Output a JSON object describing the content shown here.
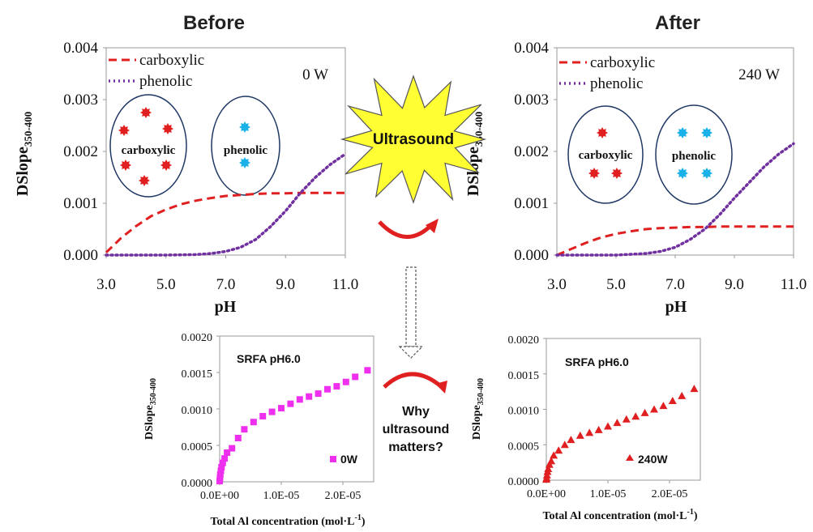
{
  "center": {
    "burst_label": "Ultrasound",
    "question_lines": [
      "Why",
      "ultrasound",
      "matters?"
    ],
    "burst_color": "#ffff33",
    "arrow_color": "#e02020"
  },
  "chart_data": [
    {
      "id": "before",
      "type": "line",
      "title": "Before",
      "power_label": "0 W",
      "xlabel": "pH",
      "ylabel": "DSlope",
      "ylabel_sub": "350-400",
      "xlim": [
        3.0,
        11.0
      ],
      "ylim": [
        0.0,
        0.004
      ],
      "xticks": [
        "3.0",
        "5.0",
        "7.0",
        "9.0",
        "11.0"
      ],
      "yticks": [
        "0.000",
        "0.001",
        "0.002",
        "0.003",
        "0.004"
      ],
      "grid": false,
      "legend_position": "top-left",
      "series": [
        {
          "name": "carboxylic",
          "style": "dashed",
          "color": "#e02020",
          "x": [
            3.0,
            3.5,
            4.0,
            4.5,
            5.0,
            5.5,
            6.0,
            6.5,
            7.0,
            7.5,
            8.0,
            8.5,
            9.0,
            9.5,
            10.0,
            10.5,
            11.0
          ],
          "y": [
            5e-05,
            0.00033,
            0.00056,
            0.00075,
            0.00088,
            0.00098,
            0.00105,
            0.0011,
            0.00114,
            0.00116,
            0.00118,
            0.00119,
            0.00119,
            0.0012,
            0.0012,
            0.0012,
            0.0012
          ]
        },
        {
          "name": "phenolic",
          "style": "dotted",
          "color": "#7030a0",
          "x": [
            3.0,
            4.0,
            5.0,
            6.0,
            6.5,
            7.0,
            7.5,
            8.0,
            8.5,
            9.0,
            9.5,
            10.0,
            10.5,
            11.0
          ],
          "y": [
            0.0,
            0.0,
            0.0,
            1e-05,
            3e-05,
            7e-05,
            0.00015,
            0.0003,
            0.00055,
            0.00085,
            0.0012,
            0.0015,
            0.00175,
            0.00195
          ]
        }
      ],
      "circles": [
        {
          "label": "carboxylic",
          "dot_color": "#e02020",
          "dots": 6
        },
        {
          "label": "phenolic",
          "dot_color": "#1ab0e8",
          "dots": 2
        }
      ]
    },
    {
      "id": "after",
      "type": "line",
      "title": "After",
      "power_label": "240 W",
      "xlabel": "pH",
      "ylabel": "DSlope",
      "ylabel_sub": "350-400",
      "xlim": [
        3.0,
        11.0
      ],
      "ylim": [
        0.0,
        0.004
      ],
      "xticks": [
        "3.0",
        "5.0",
        "7.0",
        "9.0",
        "11.0"
      ],
      "yticks": [
        "0.000",
        "0.001",
        "0.002",
        "0.003",
        "0.004"
      ],
      "grid": false,
      "legend_position": "top-left",
      "series": [
        {
          "name": "carboxylic",
          "style": "dashed",
          "color": "#e02020",
          "x": [
            3.0,
            3.5,
            4.0,
            4.5,
            5.0,
            5.5,
            6.0,
            6.5,
            7.0,
            7.5,
            8.0,
            8.5,
            9.0,
            9.5,
            10.0,
            10.5,
            11.0
          ],
          "y": [
            0.0,
            0.00012,
            0.00024,
            0.00034,
            0.00041,
            0.00046,
            0.0005,
            0.00052,
            0.00053,
            0.00054,
            0.00054,
            0.00055,
            0.00055,
            0.00055,
            0.00055,
            0.00055,
            0.00055
          ]
        },
        {
          "name": "phenolic",
          "style": "dotted",
          "color": "#7030a0",
          "x": [
            3.0,
            4.0,
            5.0,
            6.0,
            6.5,
            7.0,
            7.5,
            8.0,
            8.5,
            9.0,
            9.5,
            10.0,
            10.5,
            11.0
          ],
          "y": [
            0.0,
            0.0,
            0.0,
            3e-05,
            7e-05,
            0.00015,
            0.0003,
            0.0005,
            0.00078,
            0.0011,
            0.0014,
            0.0017,
            0.00195,
            0.00215
          ]
        }
      ],
      "circles": [
        {
          "label": "carboxylic",
          "dot_color": "#e02020",
          "dots": 3
        },
        {
          "label": "phenolic",
          "dot_color": "#1ab0e8",
          "dots": 4
        }
      ]
    },
    {
      "id": "inset-0w",
      "type": "scatter",
      "title": "SRFA pH6.0",
      "xlabel": "Total Al concentration (mol·L",
      "xlabel_sup": "-1",
      "xlabel_end": ")",
      "ylabel": "DSlope",
      "ylabel_sub": "350-400",
      "xlim": [
        0.0,
        2.5e-05
      ],
      "ylim": [
        0.0,
        0.002
      ],
      "xticks": [
        "0.0E+00",
        "1.0E-05",
        "2.0E-05"
      ],
      "xtick_values": [
        0.0,
        1e-05,
        2e-05
      ],
      "yticks": [
        "0.0000",
        "0.0005",
        "0.0010",
        "0.0015",
        "0.0020"
      ],
      "grid": false,
      "legend_position": "bottom-right",
      "series": [
        {
          "name": "0W",
          "marker": "square",
          "color": "#ee30ee",
          "x": [
            0.0,
            5e-08,
            1e-07,
            2e-07,
            3e-07,
            5e-07,
            8e-07,
            1.2e-06,
            2e-06,
            3e-06,
            4e-06,
            5.5e-06,
            7e-06,
            8.5e-06,
            1e-05,
            1.15e-05,
            1.3e-05,
            1.45e-05,
            1.6e-05,
            1.75e-05,
            1.9e-05,
            2.05e-05,
            2.2e-05,
            2.4e-05
          ],
          "y": [
            1e-05,
            5e-05,
            0.0001,
            0.00015,
            0.0002,
            0.00026,
            0.00032,
            0.0004,
            0.00046,
            0.0006,
            0.00072,
            0.00082,
            0.0009,
            0.00096,
            0.00101,
            0.00107,
            0.00113,
            0.00117,
            0.00121,
            0.00127,
            0.00131,
            0.00137,
            0.00144,
            0.00153
          ]
        }
      ]
    },
    {
      "id": "inset-240w",
      "type": "scatter",
      "title": "SRFA pH6.0",
      "xlabel": "Total Al concentration (mol·L",
      "xlabel_sup": "-1",
      "xlabel_end": ")",
      "ylabel": "DSlope",
      "ylabel_sub": "350-400",
      "xlim": [
        0.0,
        2.5e-05
      ],
      "ylim": [
        0.0,
        0.002
      ],
      "xticks": [
        "0.0E+00",
        "1.0E-05",
        "2.0E-05"
      ],
      "xtick_values": [
        0.0,
        1e-05,
        2e-05
      ],
      "yticks": [
        "0.0000",
        "0.0005",
        "0.0010",
        "0.0015",
        "0.0020"
      ],
      "grid": false,
      "legend_position": "bottom-right",
      "series": [
        {
          "name": "240W",
          "marker": "triangle",
          "color": "#e02020",
          "x": [
            0.0,
            5e-08,
            1e-07,
            2e-07,
            3e-07,
            5e-07,
            8e-07,
            1.2e-06,
            2e-06,
            3e-06,
            4e-06,
            5.5e-06,
            7e-06,
            8.5e-06,
            1e-05,
            1.15e-05,
            1.3e-05,
            1.45e-05,
            1.6e-05,
            1.75e-05,
            1.9e-05,
            2.05e-05,
            2.2e-05,
            2.4e-05
          ],
          "y": [
            1e-05,
            3e-05,
            7e-05,
            0.00012,
            0.00016,
            0.00022,
            0.00027,
            0.00035,
            0.00042,
            0.0005,
            0.00057,
            0.00063,
            0.00067,
            0.00071,
            0.00076,
            0.00081,
            0.00086,
            0.0009,
            0.00095,
            0.001,
            0.00105,
            0.00112,
            0.00119,
            0.00129
          ]
        }
      ]
    }
  ]
}
